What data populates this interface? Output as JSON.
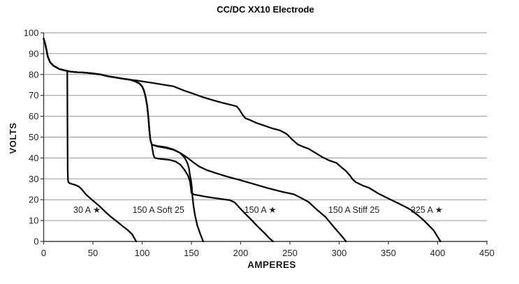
{
  "chart_data": {
    "type": "line",
    "title": "CC/DC XX10 Electrode",
    "xlabel": "AMPERES",
    "ylabel": "VOLTS",
    "xlim": [
      0,
      450
    ],
    "ylim": [
      0,
      100
    ],
    "x_ticks": [
      0,
      50,
      100,
      150,
      200,
      250,
      300,
      350,
      400,
      450
    ],
    "y_ticks": [
      0,
      10,
      20,
      30,
      40,
      50,
      60,
      70,
      80,
      90,
      100
    ],
    "grid": "horizontal-only",
    "legend_position": "none",
    "line_color": "#0a0a0a",
    "grid_color": "#969696",
    "axis_color": "#3d3d3d",
    "text_color": "#1e2128",
    "series": [
      {
        "name": "30 A ★",
        "points": [
          [
            0,
            97.2
          ],
          [
            0.8,
            96
          ],
          [
            1.8,
            94.3
          ],
          [
            3,
            91.5
          ],
          [
            4.1,
            88.7
          ],
          [
            6.5,
            85.9
          ],
          [
            10,
            84.2
          ],
          [
            16,
            82.6
          ],
          [
            23,
            81.8
          ],
          [
            24,
            81.5
          ],
          [
            24.2,
            55
          ],
          [
            24.4,
            35
          ],
          [
            24.7,
            29.5
          ],
          [
            25.2,
            28.3
          ],
          [
            26.5,
            27.9
          ],
          [
            29,
            27.5
          ],
          [
            32,
            27.1
          ],
          [
            35,
            26.5
          ],
          [
            37.5,
            25.6
          ],
          [
            40,
            24.2
          ],
          [
            43,
            22.5
          ],
          [
            47,
            20.8
          ],
          [
            51,
            19.2
          ],
          [
            56.5,
            17
          ],
          [
            63,
            14
          ],
          [
            68,
            11.9
          ],
          [
            74,
            9.7
          ],
          [
            80,
            7.4
          ],
          [
            86,
            5.2
          ],
          [
            90,
            3.3
          ],
          [
            93,
            0.8
          ],
          [
            94,
            0
          ]
        ]
      },
      {
        "name": "150 A Soft 25",
        "points": [
          [
            0,
            97.2
          ],
          [
            0.8,
            96
          ],
          [
            1.8,
            94.3
          ],
          [
            3,
            91.5
          ],
          [
            4.1,
            88.7
          ],
          [
            6.5,
            85.9
          ],
          [
            10,
            84.2
          ],
          [
            16,
            82.6
          ],
          [
            23,
            81.8
          ],
          [
            27,
            81.4
          ],
          [
            34,
            81.1
          ],
          [
            42,
            80.9
          ],
          [
            50,
            80.5
          ],
          [
            58,
            80
          ],
          [
            65,
            79.2
          ],
          [
            74,
            78.5
          ],
          [
            82,
            77.9
          ],
          [
            88,
            77.5
          ],
          [
            93,
            76.7
          ],
          [
            97,
            75.8
          ],
          [
            100,
            74.3
          ],
          [
            102,
            72.1
          ],
          [
            103.5,
            69.3
          ],
          [
            105,
            65.3
          ],
          [
            106.3,
            59.5
          ],
          [
            107.3,
            53.5
          ],
          [
            108.3,
            48.8
          ],
          [
            109.8,
            46.4
          ],
          [
            115,
            45.8
          ],
          [
            124,
            45.2
          ],
          [
            131,
            44.2
          ],
          [
            138,
            42.6
          ],
          [
            143,
            40.3
          ],
          [
            146,
            37.5
          ],
          [
            147.5,
            35.2
          ],
          [
            148.5,
            31.8
          ],
          [
            149.7,
            29
          ],
          [
            150.4,
            26
          ],
          [
            151,
            22
          ],
          [
            152,
            17.6
          ],
          [
            153.6,
            12.6
          ],
          [
            156,
            7.6
          ],
          [
            159,
            3.6
          ],
          [
            162,
            0
          ]
        ]
      },
      {
        "name": "150 A ★",
        "points": [
          [
            0,
            97.2
          ],
          [
            0.8,
            96
          ],
          [
            1.8,
            94.3
          ],
          [
            3,
            91.5
          ],
          [
            4.1,
            88.7
          ],
          [
            6.5,
            85.9
          ],
          [
            10,
            84.2
          ],
          [
            16,
            82.6
          ],
          [
            23,
            81.8
          ],
          [
            27,
            81.4
          ],
          [
            34,
            81.1
          ],
          [
            42,
            80.9
          ],
          [
            50,
            80.5
          ],
          [
            58,
            80
          ],
          [
            65,
            79.2
          ],
          [
            74,
            78.5
          ],
          [
            82,
            77.9
          ],
          [
            88,
            77.5
          ],
          [
            93,
            76.7
          ],
          [
            97,
            75.8
          ],
          [
            100,
            74.3
          ],
          [
            102,
            72.1
          ],
          [
            103.5,
            69.3
          ],
          [
            105,
            65.3
          ],
          [
            106.3,
            59.5
          ],
          [
            107.3,
            53.5
          ],
          [
            108.3,
            48.8
          ],
          [
            109.8,
            46.4
          ],
          [
            110.4,
            44.2
          ],
          [
            111.4,
            41.6
          ],
          [
            112.6,
            40.1
          ],
          [
            116,
            39.7
          ],
          [
            122,
            39.4
          ],
          [
            128,
            39.1
          ],
          [
            134,
            38.3
          ],
          [
            139,
            36.7
          ],
          [
            143,
            34.3
          ],
          [
            146.5,
            31.6
          ],
          [
            148.5,
            28.8
          ],
          [
            149.4,
            26
          ],
          [
            150,
            23.2
          ],
          [
            152.5,
            22.5
          ],
          [
            157,
            22.1
          ],
          [
            164,
            21.5
          ],
          [
            172,
            20.9
          ],
          [
            181,
            20.3
          ],
          [
            189,
            19.8
          ],
          [
            194,
            18.7
          ],
          [
            199,
            16.1
          ],
          [
            205,
            13.1
          ],
          [
            211,
            10.3
          ],
          [
            217,
            7.3
          ],
          [
            224,
            4.1
          ],
          [
            229,
            1.6
          ],
          [
            233,
            0
          ]
        ]
      },
      {
        "name": "150 A Stiff 25",
        "points": [
          [
            0,
            97.2
          ],
          [
            0.8,
            96
          ],
          [
            1.8,
            94.3
          ],
          [
            3,
            91.5
          ],
          [
            4.1,
            88.7
          ],
          [
            6.5,
            85.9
          ],
          [
            10,
            84.2
          ],
          [
            16,
            82.6
          ],
          [
            23,
            81.8
          ],
          [
            27,
            81.4
          ],
          [
            34,
            81.1
          ],
          [
            42,
            80.9
          ],
          [
            50,
            80.5
          ],
          [
            58,
            80
          ],
          [
            65,
            79.2
          ],
          [
            74,
            78.5
          ],
          [
            82,
            77.9
          ],
          [
            88,
            77.5
          ],
          [
            93,
            76.7
          ],
          [
            97,
            75.8
          ],
          [
            100,
            74.3
          ],
          [
            102,
            72.1
          ],
          [
            103.5,
            69.3
          ],
          [
            105,
            65.3
          ],
          [
            106.3,
            59.5
          ],
          [
            107.3,
            53.5
          ],
          [
            108.3,
            48.8
          ],
          [
            109.8,
            46.4
          ],
          [
            116,
            45.5
          ],
          [
            124,
            44.8
          ],
          [
            132,
            43.9
          ],
          [
            139,
            42.3
          ],
          [
            146,
            40.1
          ],
          [
            152,
            37.9
          ],
          [
            158,
            35.9
          ],
          [
            166,
            34.1
          ],
          [
            175,
            32.7
          ],
          [
            186,
            31.1
          ],
          [
            198,
            29.6
          ],
          [
            212,
            27.7
          ],
          [
            228,
            25.5
          ],
          [
            243,
            23.7
          ],
          [
            254,
            22.6
          ],
          [
            262,
            20.7
          ],
          [
            269,
            18.9
          ],
          [
            277,
            15.4
          ],
          [
            286,
            11.8
          ],
          [
            294,
            7.3
          ],
          [
            300,
            4
          ],
          [
            305,
            1.2
          ],
          [
            307,
            0
          ]
        ]
      },
      {
        "name": "325 A ★",
        "points": [
          [
            0,
            97.2
          ],
          [
            0.8,
            96
          ],
          [
            1.8,
            94.3
          ],
          [
            3,
            91.5
          ],
          [
            4.1,
            88.7
          ],
          [
            6.5,
            85.9
          ],
          [
            10,
            84.2
          ],
          [
            16,
            82.6
          ],
          [
            23,
            81.8
          ],
          [
            27,
            81.4
          ],
          [
            34,
            81.1
          ],
          [
            42,
            80.9
          ],
          [
            50,
            80.5
          ],
          [
            58,
            80
          ],
          [
            65,
            79.2
          ],
          [
            74,
            78.5
          ],
          [
            82,
            77.9
          ],
          [
            88,
            77.5
          ],
          [
            95,
            77.1
          ],
          [
            103,
            76.5
          ],
          [
            112,
            75.9
          ],
          [
            122,
            75.1
          ],
          [
            132,
            74.3
          ],
          [
            142,
            72.4
          ],
          [
            152,
            70.8
          ],
          [
            162,
            69.1
          ],
          [
            172,
            67.7
          ],
          [
            182,
            66.4
          ],
          [
            190,
            65.5
          ],
          [
            196,
            64.7
          ],
          [
            199,
            63
          ],
          [
            202,
            60.7
          ],
          [
            205,
            59
          ],
          [
            210,
            58.1
          ],
          [
            216,
            56.8
          ],
          [
            223,
            55.7
          ],
          [
            232,
            54.2
          ],
          [
            240,
            53.2
          ],
          [
            247,
            51.4
          ],
          [
            252,
            49
          ],
          [
            258,
            46.5
          ],
          [
            263,
            45.5
          ],
          [
            269,
            44.4
          ],
          [
            276,
            42.4
          ],
          [
            283,
            40.4
          ],
          [
            290,
            38.8
          ],
          [
            297,
            37.7
          ],
          [
            303,
            35.3
          ],
          [
            307,
            33.7
          ],
          [
            311,
            31.6
          ],
          [
            313.5,
            29.9
          ],
          [
            317,
            28.4
          ],
          [
            324,
            26.8
          ],
          [
            330,
            25.8
          ],
          [
            340,
            22.9
          ],
          [
            352,
            20.1
          ],
          [
            360,
            18.3
          ],
          [
            368,
            16.4
          ],
          [
            373,
            15.1
          ],
          [
            379,
            12.9
          ],
          [
            385,
            10.5
          ],
          [
            390,
            8.2
          ],
          [
            396,
            5.3
          ],
          [
            400,
            2.2
          ],
          [
            403,
            0
          ]
        ]
      }
    ],
    "annotations": [
      {
        "text": "30 A ★",
        "x": 44,
        "y": 15.3
      },
      {
        "text": "150 A Soft 25",
        "x": 116.5,
        "y": 15.3
      },
      {
        "text": "150 A ★",
        "x": 220,
        "y": 15.3
      },
      {
        "text": "150 A Stiff 25",
        "x": 315,
        "y": 15.3
      },
      {
        "text": "325 A ★",
        "x": 389,
        "y": 15.3
      }
    ]
  }
}
